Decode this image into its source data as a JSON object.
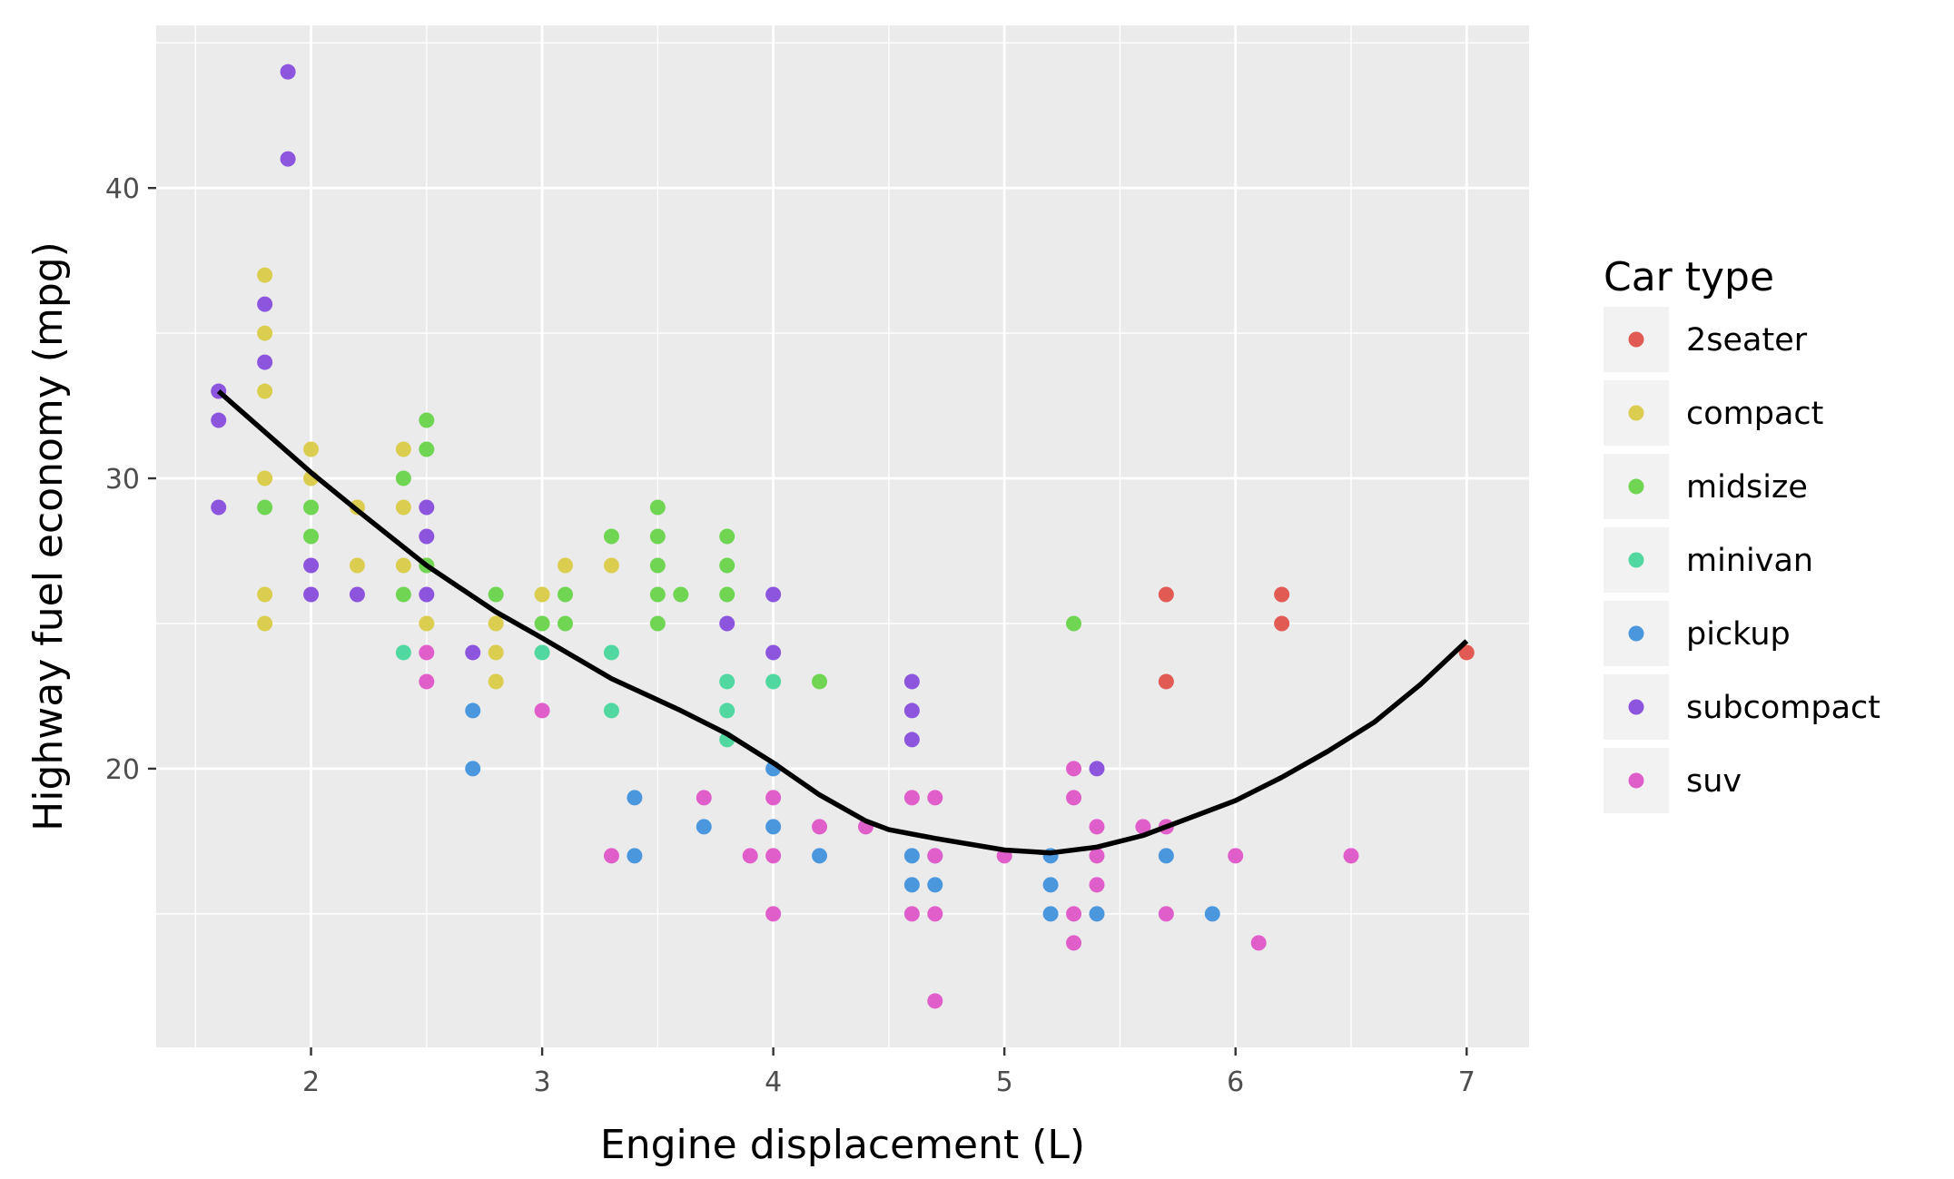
{
  "chart_data": {
    "type": "scatter",
    "title": "",
    "xlabel": "Engine displacement (L)",
    "ylabel": "Highway fuel economy (mpg)",
    "xlim": [
      1.33,
      7.27
    ],
    "ylim": [
      10.4,
      45.6
    ],
    "x_ticks": [
      2,
      3,
      4,
      5,
      6,
      7
    ],
    "y_ticks": [
      20,
      30,
      40
    ],
    "grid": true,
    "legend_placement": "right",
    "legend": {
      "title": "Car type",
      "entries": [
        {
          "name": "2seater",
          "color": "#e15a53"
        },
        {
          "name": "compact",
          "color": "#dbcd4f"
        },
        {
          "name": "midsize",
          "color": "#70d553"
        },
        {
          "name": "minivan",
          "color": "#50d8a0"
        },
        {
          "name": "pickup",
          "color": "#4b97de"
        },
        {
          "name": "subcompact",
          "color": "#8d55dd"
        },
        {
          "name": "suv",
          "color": "#e05ec9"
        }
      ]
    },
    "series": [
      {
        "name": "2seater",
        "color": "#e15a53",
        "points": [
          [
            5.7,
            26
          ],
          [
            5.7,
            23
          ],
          [
            6.2,
            26
          ],
          [
            6.2,
            25
          ],
          [
            7.0,
            24
          ]
        ]
      },
      {
        "name": "compact",
        "color": "#dbcd4f",
        "points": [
          [
            1.8,
            37
          ],
          [
            1.8,
            35
          ],
          [
            1.8,
            33
          ],
          [
            1.8,
            30
          ],
          [
            1.8,
            26
          ],
          [
            1.8,
            25
          ],
          [
            2.0,
            31
          ],
          [
            2.0,
            30
          ],
          [
            2.2,
            29
          ],
          [
            2.2,
            27
          ],
          [
            2.4,
            31
          ],
          [
            2.4,
            29
          ],
          [
            2.4,
            27
          ],
          [
            2.5,
            27
          ],
          [
            2.5,
            25
          ],
          [
            2.8,
            25
          ],
          [
            2.8,
            24
          ],
          [
            2.8,
            23
          ],
          [
            3.0,
            26
          ],
          [
            3.1,
            27
          ],
          [
            3.3,
            27
          ]
        ]
      },
      {
        "name": "midsize",
        "color": "#70d553",
        "points": [
          [
            1.8,
            29
          ],
          [
            2.0,
            29
          ],
          [
            2.0,
            28
          ],
          [
            2.4,
            30
          ],
          [
            2.4,
            26
          ],
          [
            2.5,
            32
          ],
          [
            2.5,
            31
          ],
          [
            2.5,
            27
          ],
          [
            2.8,
            26
          ],
          [
            3.0,
            25
          ],
          [
            3.1,
            26
          ],
          [
            3.1,
            25
          ],
          [
            3.3,
            28
          ],
          [
            3.5,
            29
          ],
          [
            3.5,
            28
          ],
          [
            3.5,
            27
          ],
          [
            3.5,
            26
          ],
          [
            3.5,
            25
          ],
          [
            3.6,
            26
          ],
          [
            3.8,
            28
          ],
          [
            3.8,
            27
          ],
          [
            3.8,
            26
          ],
          [
            4.2,
            23
          ],
          [
            5.3,
            25
          ]
        ]
      },
      {
        "name": "minivan",
        "color": "#50d8a0",
        "points": [
          [
            2.4,
            24
          ],
          [
            3.0,
            24
          ],
          [
            3.3,
            24
          ],
          [
            3.3,
            22
          ],
          [
            3.8,
            23
          ],
          [
            3.8,
            22
          ],
          [
            3.8,
            21
          ],
          [
            4.0,
            23
          ]
        ]
      },
      {
        "name": "pickup",
        "color": "#4b97de",
        "points": [
          [
            2.7,
            22
          ],
          [
            2.7,
            20
          ],
          [
            3.4,
            19
          ],
          [
            3.4,
            17
          ],
          [
            3.7,
            18
          ],
          [
            4.0,
            20
          ],
          [
            4.0,
            18
          ],
          [
            4.2,
            17
          ],
          [
            4.6,
            17
          ],
          [
            4.6,
            16
          ],
          [
            4.7,
            17
          ],
          [
            4.7,
            16
          ],
          [
            5.2,
            17
          ],
          [
            5.2,
            16
          ],
          [
            5.2,
            15
          ],
          [
            5.4,
            15
          ],
          [
            5.7,
            17
          ],
          [
            5.9,
            15
          ]
        ]
      },
      {
        "name": "subcompact",
        "color": "#8d55dd",
        "points": [
          [
            1.6,
            33
          ],
          [
            1.6,
            32
          ],
          [
            1.6,
            29
          ],
          [
            1.8,
            36
          ],
          [
            1.8,
            34
          ],
          [
            1.9,
            44
          ],
          [
            1.9,
            41
          ],
          [
            2.0,
            27
          ],
          [
            2.0,
            26
          ],
          [
            2.2,
            26
          ],
          [
            2.5,
            29
          ],
          [
            2.5,
            28
          ],
          [
            2.5,
            26
          ],
          [
            2.7,
            24
          ],
          [
            3.8,
            25
          ],
          [
            4.0,
            26
          ],
          [
            4.0,
            24
          ],
          [
            4.6,
            23
          ],
          [
            4.6,
            22
          ],
          [
            4.6,
            21
          ],
          [
            5.4,
            20
          ]
        ]
      },
      {
        "name": "suv",
        "color": "#e05ec9",
        "points": [
          [
            2.5,
            24
          ],
          [
            2.5,
            23
          ],
          [
            3.0,
            22
          ],
          [
            3.3,
            17
          ],
          [
            3.7,
            19
          ],
          [
            3.9,
            17
          ],
          [
            4.0,
            19
          ],
          [
            4.0,
            17
          ],
          [
            4.0,
            15
          ],
          [
            4.2,
            18
          ],
          [
            4.4,
            18
          ],
          [
            4.6,
            19
          ],
          [
            4.6,
            15
          ],
          [
            4.7,
            19
          ],
          [
            4.7,
            17
          ],
          [
            4.7,
            15
          ],
          [
            4.7,
            12
          ],
          [
            5.0,
            17
          ],
          [
            5.3,
            20
          ],
          [
            5.3,
            19
          ],
          [
            5.3,
            15
          ],
          [
            5.3,
            14
          ],
          [
            5.4,
            18
          ],
          [
            5.4,
            17
          ],
          [
            5.4,
            16
          ],
          [
            5.6,
            18
          ],
          [
            5.7,
            18
          ],
          [
            5.7,
            15
          ],
          [
            6.0,
            17
          ],
          [
            6.1,
            14
          ],
          [
            6.5,
            17
          ]
        ]
      }
    ],
    "smooth_line": {
      "color": "#000000",
      "points": [
        [
          1.6,
          33.0
        ],
        [
          1.8,
          31.6
        ],
        [
          2.0,
          30.2
        ],
        [
          2.2,
          28.9
        ],
        [
          2.5,
          27.0
        ],
        [
          2.8,
          25.4
        ],
        [
          3.0,
          24.5
        ],
        [
          3.3,
          23.1
        ],
        [
          3.6,
          22.0
        ],
        [
          3.8,
          21.2
        ],
        [
          4.0,
          20.2
        ],
        [
          4.2,
          19.1
        ],
        [
          4.4,
          18.2
        ],
        [
          4.5,
          17.9
        ],
        [
          4.7,
          17.6
        ],
        [
          5.0,
          17.2
        ],
        [
          5.2,
          17.1
        ],
        [
          5.4,
          17.3
        ],
        [
          5.6,
          17.7
        ],
        [
          5.8,
          18.3
        ],
        [
          6.0,
          18.9
        ],
        [
          6.2,
          19.7
        ],
        [
          6.4,
          20.6
        ],
        [
          6.6,
          21.6
        ],
        [
          6.8,
          22.9
        ],
        [
          7.0,
          24.4
        ]
      ]
    }
  }
}
